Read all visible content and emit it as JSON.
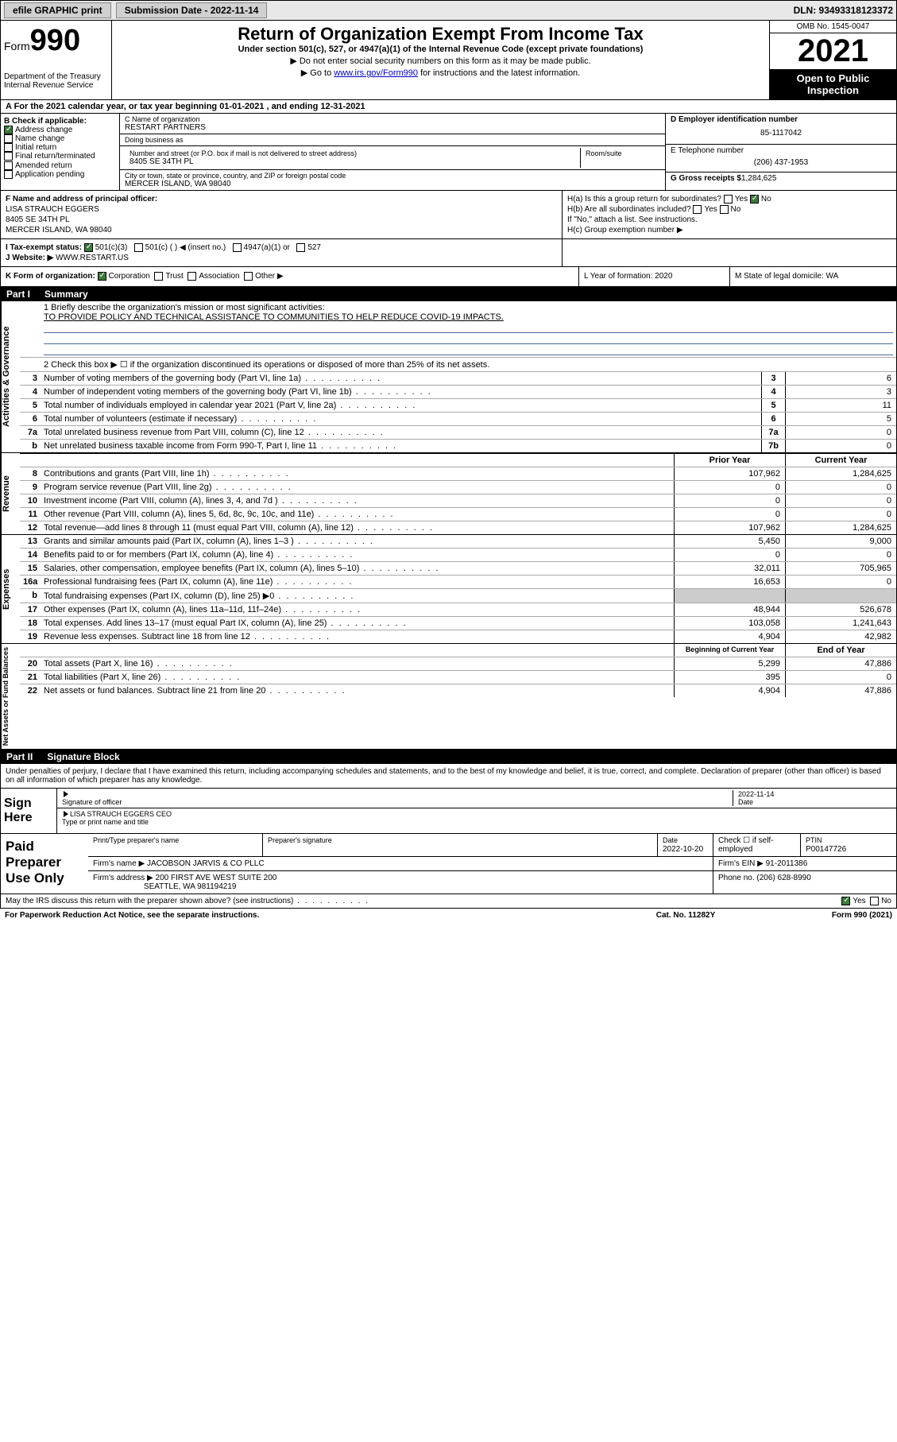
{
  "top": {
    "efile": "efile GRAPHIC print",
    "submission_label": "Submission Date - 2022-11-14",
    "dln": "DLN: 93493318123372"
  },
  "header": {
    "form_word": "Form",
    "form_num": "990",
    "title": "Return of Organization Exempt From Income Tax",
    "subtitle": "Under section 501(c), 527, or 4947(a)(1) of the Internal Revenue Code (except private foundations)",
    "note1": "▶ Do not enter social security numbers on this form as it may be made public.",
    "note2_prefix": "▶ Go to ",
    "note2_link": "www.irs.gov/Form990",
    "note2_suffix": " for instructions and the latest information.",
    "dept": "Department of the Treasury\nInternal Revenue Service",
    "omb": "OMB No. 1545-0047",
    "year": "2021",
    "open": "Open to Public Inspection"
  },
  "A": {
    "text": "A For the 2021 calendar year, or tax year beginning 01-01-2021    , and ending 12-31-2021"
  },
  "B": {
    "label": "B Check if applicable:",
    "opts": [
      "Address change",
      "Name change",
      "Initial return",
      "Final return/terminated",
      "Amended return",
      "Application pending"
    ],
    "checked": [
      true,
      false,
      false,
      false,
      false,
      false
    ]
  },
  "C": {
    "name_label": "C Name of organization",
    "name": "RESTART PARTNERS",
    "dba_label": "Doing business as",
    "dba": "",
    "addr_label": "Number and street (or P.O. box if mail is not delivered to street address)",
    "room_label": "Room/suite",
    "addr": "8405 SE 34TH PL",
    "city_label": "City or town, state or province, country, and ZIP or foreign postal code",
    "city": "MERCER ISLAND, WA   98040"
  },
  "D": {
    "label": "D Employer identification number",
    "value": "85-1117042"
  },
  "E": {
    "label": "E Telephone number",
    "value": "(206) 437-1953"
  },
  "G": {
    "label": "G Gross receipts $",
    "value": "1,284,625"
  },
  "F": {
    "label": "F  Name and address of principal officer:",
    "name": "LISA STRAUCH EGGERS",
    "addr1": "8405 SE 34TH PL",
    "addr2": "MERCER ISLAND, WA   98040"
  },
  "H": {
    "a": "H(a)  Is this a group return for subordinates?",
    "a_yes": "Yes",
    "a_no": "No",
    "b": "H(b)  Are all subordinates included?",
    "b_yes": "Yes",
    "b_no": "No",
    "b_note": "If \"No,\" attach a list. See instructions.",
    "c": "H(c)  Group exemption number ▶"
  },
  "I": {
    "label": "I     Tax-exempt status:",
    "opts": [
      "501(c)(3)",
      "501(c) (   ) ◀ (insert no.)",
      "4947(a)(1) or",
      "527"
    ]
  },
  "J": {
    "label": "J     Website: ▶",
    "value": "WWW.RESTART.US"
  },
  "K": {
    "label": "K Form of organization:",
    "opts": [
      "Corporation",
      "Trust",
      "Association",
      "Other ▶"
    ]
  },
  "L": {
    "label": "L Year of formation: 2020"
  },
  "M": {
    "label": "M State of legal domicile: WA"
  },
  "part1": {
    "hdr_part": "Part I",
    "hdr_title": "Summary",
    "mission_label": "1   Briefly describe the organization's mission or most significant activities:",
    "mission": "TO PROVIDE POLICY AND TECHNICAL ASSISTANCE TO COMMUNITIES TO HELP REDUCE COVID-19 IMPACTS.",
    "line2": "2   Check this box ▶ ☐  if the organization discontinued its operations or disposed of more than 25% of its net assets.",
    "gov_rows": [
      {
        "n": "3",
        "d": "Number of voting members of the governing body (Part VI, line 1a)",
        "box": "3",
        "v": "6"
      },
      {
        "n": "4",
        "d": "Number of independent voting members of the governing body (Part VI, line 1b)",
        "box": "4",
        "v": "3"
      },
      {
        "n": "5",
        "d": "Total number of individuals employed in calendar year 2021 (Part V, line 2a)",
        "box": "5",
        "v": "11"
      },
      {
        "n": "6",
        "d": "Total number of volunteers (estimate if necessary)",
        "box": "6",
        "v": "5"
      },
      {
        "n": "7a",
        "d": "Total unrelated business revenue from Part VIII, column (C), line 12",
        "box": "7a",
        "v": "0"
      },
      {
        "n": "b",
        "d": "Net unrelated business taxable income from Form 990-T, Part I, line 11",
        "box": "7b",
        "v": "0"
      }
    ],
    "prior_label": "Prior Year",
    "current_label": "Current Year",
    "rev_rows": [
      {
        "n": "8",
        "d": "Contributions and grants (Part VIII, line 1h)",
        "p": "107,962",
        "c": "1,284,625"
      },
      {
        "n": "9",
        "d": "Program service revenue (Part VIII, line 2g)",
        "p": "0",
        "c": "0"
      },
      {
        "n": "10",
        "d": "Investment income (Part VIII, column (A), lines 3, 4, and 7d )",
        "p": "0",
        "c": "0"
      },
      {
        "n": "11",
        "d": "Other revenue (Part VIII, column (A), lines 5, 6d, 8c, 9c, 10c, and 11e)",
        "p": "0",
        "c": "0"
      },
      {
        "n": "12",
        "d": "Total revenue—add lines 8 through 11 (must equal Part VIII, column (A), line 12)",
        "p": "107,962",
        "c": "1,284,625"
      }
    ],
    "exp_rows": [
      {
        "n": "13",
        "d": "Grants and similar amounts paid (Part IX, column (A), lines 1–3 )",
        "p": "5,450",
        "c": "9,000"
      },
      {
        "n": "14",
        "d": "Benefits paid to or for members (Part IX, column (A), line 4)",
        "p": "0",
        "c": "0"
      },
      {
        "n": "15",
        "d": "Salaries, other compensation, employee benefits (Part IX, column (A), lines 5–10)",
        "p": "32,011",
        "c": "705,965"
      },
      {
        "n": "16a",
        "d": "Professional fundraising fees (Part IX, column (A), line 11e)",
        "p": "16,653",
        "c": "0"
      },
      {
        "n": "b",
        "d": "Total fundraising expenses (Part IX, column (D), line 25) ▶0",
        "p": "",
        "c": "",
        "shade": true
      },
      {
        "n": "17",
        "d": "Other expenses (Part IX, column (A), lines 11a–11d, 11f–24e)",
        "p": "48,944",
        "c": "526,678"
      },
      {
        "n": "18",
        "d": "Total expenses. Add lines 13–17 (must equal Part IX, column (A), line 25)",
        "p": "103,058",
        "c": "1,241,643"
      },
      {
        "n": "19",
        "d": "Revenue less expenses. Subtract line 18 from line 12",
        "p": "4,904",
        "c": "42,982"
      }
    ],
    "begin_label": "Beginning of Current Year",
    "end_label": "End of Year",
    "net_rows": [
      {
        "n": "20",
        "d": "Total assets (Part X, line 16)",
        "p": "5,299",
        "c": "47,886"
      },
      {
        "n": "21",
        "d": "Total liabilities (Part X, line 26)",
        "p": "395",
        "c": "0"
      },
      {
        "n": "22",
        "d": "Net assets or fund balances. Subtract line 21 from line 20",
        "p": "4,904",
        "c": "47,886"
      }
    ],
    "vtab_gov": "Activities & Governance",
    "vtab_rev": "Revenue",
    "vtab_exp": "Expenses",
    "vtab_net": "Net Assets or Fund Balances"
  },
  "part2": {
    "hdr_part": "Part II",
    "hdr_title": "Signature Block",
    "decl": "Under penalties of perjury, I declare that I have examined this return, including accompanying schedules and statements, and to the best of my knowledge and belief, it is true, correct, and complete. Declaration of preparer (other than officer) is based on all information of which preparer has any knowledge.",
    "sign_here": "Sign Here",
    "sig_officer": "Signature of officer",
    "sig_date": "2022-11-14",
    "date_lbl": "Date",
    "officer_name": "LISA STRAUCH EGGERS CEO",
    "officer_lbl": "Type or print name and title",
    "paid_label": "Paid Preparer Use Only",
    "prep_name_lbl": "Print/Type preparer's name",
    "prep_sig_lbl": "Preparer's signature",
    "prep_date_lbl": "Date",
    "prep_date": "2022-10-20",
    "prep_check": "Check ☐ if self-employed",
    "ptin_lbl": "PTIN",
    "ptin": "P00147726",
    "firm_name_lbl": "Firm's name    ▶",
    "firm_name": "JACOBSON JARVIS & CO PLLC",
    "firm_ein_lbl": "Firm's EIN ▶",
    "firm_ein": "91-2011386",
    "firm_addr_lbl": "Firm's address ▶",
    "firm_addr1": "200 FIRST AVE WEST SUITE 200",
    "firm_addr2": "SEATTLE, WA  981194219",
    "firm_phone_lbl": "Phone no.",
    "firm_phone": "(206) 628-8990",
    "discuss": "May the IRS discuss this return with the preparer shown above? (see instructions)",
    "yes": "Yes",
    "no": "No",
    "paperwork": "For Paperwork Reduction Act Notice, see the separate instructions.",
    "catno": "Cat. No. 11282Y",
    "formno": "Form 990 (2021)"
  }
}
